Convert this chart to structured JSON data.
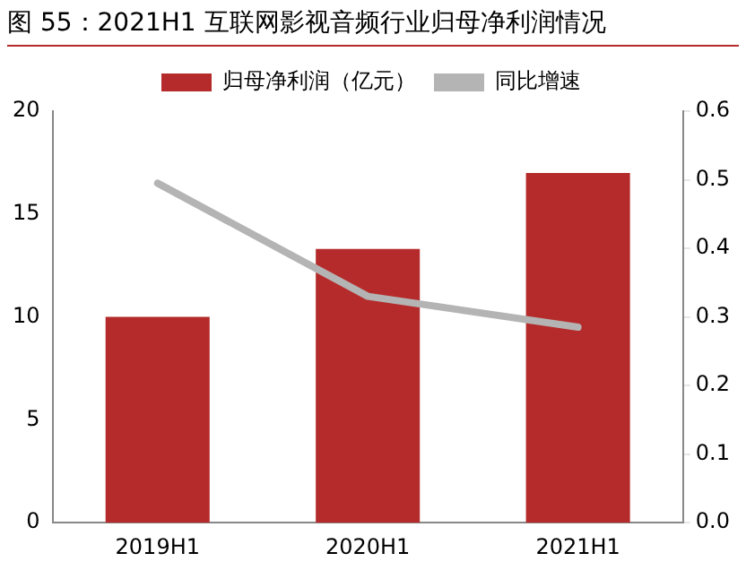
{
  "chart_data": {
    "type": "bar",
    "title": "图 55：2021H1 互联网影视音频行业归母净利润情况",
    "categories": [
      "2019H1",
      "2020H1",
      "2021H1"
    ],
    "series": [
      {
        "name": "归母净利润（亿元）",
        "color": "#b52b2b",
        "values": [
          10.0,
          13.3,
          17.0
        ]
      },
      {
        "name": "同比增速",
        "type": "line",
        "axis": "y2",
        "color": "#b4b4b4",
        "values": [
          0.495,
          0.33,
          0.285
        ]
      }
    ],
    "ylim": [
      0,
      20
    ],
    "yticks": [
      0,
      5,
      10,
      15,
      20
    ],
    "y2lim": [
      0,
      0.6
    ],
    "y2ticks": [
      {
        "value": 0,
        "label": "0.0"
      },
      0.1,
      0.2,
      0.3,
      0.4,
      0.5,
      0.6
    ],
    "grid": false,
    "legend": "top",
    "marker": "none"
  }
}
